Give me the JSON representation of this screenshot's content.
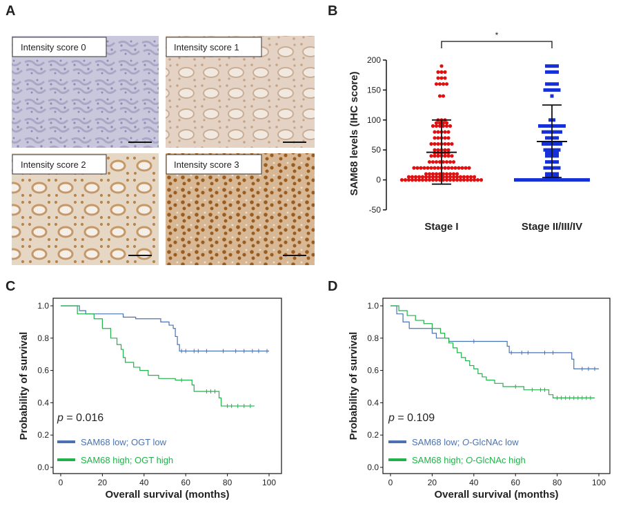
{
  "panels": {
    "A": {
      "letter": "A"
    },
    "B": {
      "letter": "B"
    },
    "C": {
      "letter": "C"
    },
    "D": {
      "letter": "D"
    }
  },
  "ihc": {
    "labels": [
      "Intensity score 0",
      "Intensity score 1",
      "Intensity score 2",
      "Intensity score 3"
    ],
    "colors": {
      "tile0_bg": "#c9c7dc",
      "tile0_cell": "#8f8cb5",
      "tile1_bg": "#e4d3c4",
      "tile1_cell": "#c4a386",
      "tile2_bg": "#e6d6c4",
      "tile2_cell": "#b8834a",
      "tile3_bg": "#d8b894",
      "tile3_cell": "#9a5d1f"
    }
  },
  "chart_data": [
    {
      "type": "scatter",
      "panel": "B",
      "ylabel": "SAM68 levels (IHC score)",
      "ylim": [
        -50,
        200
      ],
      "yticks": [
        "200",
        "150",
        "100",
        "50",
        "0",
        "-50"
      ],
      "categories": [
        "Stage I",
        "Stage II/III/IV"
      ],
      "significance": "*",
      "series": [
        {
          "name": "Stage I",
          "color": "#e01010",
          "mean": 46,
          "sd_upper": 100,
          "sd_lower": -7,
          "points": [
            {
              "y": 190,
              "count": 1
            },
            {
              "y": 180,
              "count": 3
            },
            {
              "y": 170,
              "count": 3
            },
            {
              "y": 160,
              "count": 4
            },
            {
              "y": 140,
              "count": 2
            },
            {
              "y": 100,
              "count": 3
            },
            {
              "y": 95,
              "count": 4
            },
            {
              "y": 90,
              "count": 6
            },
            {
              "y": 80,
              "count": 5
            },
            {
              "y": 70,
              "count": 5
            },
            {
              "y": 60,
              "count": 7
            },
            {
              "y": 50,
              "count": 5
            },
            {
              "y": 45,
              "count": 5
            },
            {
              "y": 40,
              "count": 7
            },
            {
              "y": 30,
              "count": 8
            },
            {
              "y": 20,
              "count": 17
            },
            {
              "y": 10,
              "count": 10
            },
            {
              "y": 5,
              "count": 20
            },
            {
              "y": 0,
              "count": 24
            }
          ]
        },
        {
          "name": "Stage II/III/IV",
          "color": "#1530d8",
          "mean": 64,
          "sd_upper": 125,
          "sd_lower": 4,
          "points": [
            {
              "y": 190,
              "count": 4
            },
            {
              "y": 180,
              "count": 4
            },
            {
              "y": 160,
              "count": 4
            },
            {
              "y": 150,
              "count": 5
            },
            {
              "y": 140,
              "count": 1
            },
            {
              "y": 100,
              "count": 2
            },
            {
              "y": 90,
              "count": 8
            },
            {
              "y": 80,
              "count": 6
            },
            {
              "y": 70,
              "count": 4
            },
            {
              "y": 60,
              "count": 6
            },
            {
              "y": 50,
              "count": 5
            },
            {
              "y": 45,
              "count": 4
            },
            {
              "y": 40,
              "count": 4
            },
            {
              "y": 30,
              "count": 4
            },
            {
              "y": 20,
              "count": 5
            },
            {
              "y": 10,
              "count": 4
            },
            {
              "y": 5,
              "count": 4
            },
            {
              "y": 0,
              "count": 22
            }
          ]
        }
      ]
    },
    {
      "type": "line",
      "panel": "C",
      "xlabel": "Overall survival (months)",
      "ylabel": "Probability of survival",
      "xlim": [
        0,
        100
      ],
      "ylim": [
        0,
        1
      ],
      "xticks": [
        "0",
        "20",
        "40",
        "60",
        "80",
        "100"
      ],
      "yticks": [
        "1.0",
        "0.8",
        "0.6",
        "0.4",
        "0.2",
        "0.0"
      ],
      "pvalue_label": "p",
      "pvalue_text": " = 0.016",
      "series": [
        {
          "name": "SAM68 low; OGT low",
          "color": "#4a72b0",
          "steps": [
            [
              0,
              1.0
            ],
            [
              9,
              0.97
            ],
            [
              12,
              0.95
            ],
            [
              30,
              0.93
            ],
            [
              36,
              0.92
            ],
            [
              48,
              0.9
            ],
            [
              52,
              0.88
            ],
            [
              54,
              0.86
            ],
            [
              55,
              0.81
            ],
            [
              56,
              0.76
            ],
            [
              57,
              0.72
            ],
            [
              100,
              0.72
            ]
          ],
          "censors": [
            [
              58,
              0.72
            ],
            [
              60,
              0.72
            ],
            [
              64,
              0.72
            ],
            [
              66,
              0.72
            ],
            [
              70,
              0.72
            ],
            [
              78,
              0.72
            ],
            [
              84,
              0.72
            ],
            [
              88,
              0.72
            ],
            [
              92,
              0.72
            ],
            [
              95,
              0.72
            ],
            [
              99,
              0.72
            ]
          ]
        },
        {
          "name": "SAM68 high; OGT high",
          "color": "#22b04a",
          "steps": [
            [
              0,
              1.0
            ],
            [
              8,
              0.95
            ],
            [
              16,
              0.92
            ],
            [
              20,
              0.86
            ],
            [
              24,
              0.8
            ],
            [
              27,
              0.76
            ],
            [
              29,
              0.73
            ],
            [
              30,
              0.68
            ],
            [
              31,
              0.65
            ],
            [
              35,
              0.62
            ],
            [
              38,
              0.6
            ],
            [
              42,
              0.57
            ],
            [
              47,
              0.55
            ],
            [
              55,
              0.54
            ],
            [
              63,
              0.51
            ],
            [
              64,
              0.47
            ],
            [
              76,
              0.43
            ],
            [
              77,
              0.38
            ],
            [
              93,
              0.38
            ]
          ],
          "censors": [
            [
              58,
              0.54
            ],
            [
              70,
              0.47
            ],
            [
              72,
              0.47
            ],
            [
              74,
              0.47
            ],
            [
              80,
              0.38
            ],
            [
              82,
              0.38
            ],
            [
              85,
              0.38
            ],
            [
              88,
              0.38
            ],
            [
              91,
              0.38
            ]
          ]
        }
      ]
    },
    {
      "type": "line",
      "panel": "D",
      "xlabel": "Overall survival (months)",
      "ylabel": "Probability of survival",
      "xlim": [
        0,
        100
      ],
      "ylim": [
        0,
        1
      ],
      "xticks": [
        "0",
        "20",
        "40",
        "60",
        "80",
        "100"
      ],
      "yticks": [
        "1.0",
        "0.8",
        "0.6",
        "0.4",
        "0.2",
        "0.0"
      ],
      "pvalue_label": "p",
      "pvalue_text": " = 0.109",
      "series": [
        {
          "name_pre": "SAM68 low; ",
          "name_em": "O",
          "name_post": "-GlcNAc low",
          "color": "#4a72b0",
          "steps": [
            [
              0,
              1.0
            ],
            [
              3,
              0.95
            ],
            [
              6,
              0.9
            ],
            [
              9,
              0.86
            ],
            [
              20,
              0.83
            ],
            [
              22,
              0.8
            ],
            [
              28,
              0.78
            ],
            [
              56,
              0.75
            ],
            [
              57,
              0.71
            ],
            [
              87,
              0.67
            ],
            [
              88,
              0.61
            ],
            [
              100,
              0.61
            ]
          ],
          "censors": [
            [
              40,
              0.78
            ],
            [
              58,
              0.71
            ],
            [
              63,
              0.71
            ],
            [
              66,
              0.71
            ],
            [
              74,
              0.71
            ],
            [
              78,
              0.71
            ],
            [
              92,
              0.61
            ],
            [
              95,
              0.61
            ],
            [
              98,
              0.61
            ]
          ]
        },
        {
          "name_pre": "SAM68 high; ",
          "name_em": "O",
          "name_post": "-GlcNAc high",
          "color": "#22b04a",
          "steps": [
            [
              0,
              1.0
            ],
            [
              4,
              0.97
            ],
            [
              8,
              0.94
            ],
            [
              12,
              0.91
            ],
            [
              16,
              0.89
            ],
            [
              20,
              0.86
            ],
            [
              24,
              0.83
            ],
            [
              26,
              0.8
            ],
            [
              28,
              0.77
            ],
            [
              30,
              0.74
            ],
            [
              32,
              0.71
            ],
            [
              34,
              0.68
            ],
            [
              36,
              0.66
            ],
            [
              38,
              0.63
            ],
            [
              40,
              0.61
            ],
            [
              42,
              0.58
            ],
            [
              44,
              0.56
            ],
            [
              46,
              0.54
            ],
            [
              50,
              0.52
            ],
            [
              54,
              0.5
            ],
            [
              64,
              0.48
            ],
            [
              76,
              0.45
            ],
            [
              78,
              0.43
            ],
            [
              98,
              0.43
            ]
          ],
          "censors": [
            [
              60,
              0.5
            ],
            [
              68,
              0.48
            ],
            [
              72,
              0.48
            ],
            [
              74,
              0.48
            ],
            [
              80,
              0.43
            ],
            [
              82,
              0.43
            ],
            [
              84,
              0.43
            ],
            [
              86,
              0.43
            ],
            [
              88,
              0.43
            ],
            [
              90,
              0.43
            ],
            [
              92,
              0.43
            ],
            [
              94,
              0.43
            ],
            [
              96,
              0.43
            ]
          ]
        }
      ]
    }
  ]
}
